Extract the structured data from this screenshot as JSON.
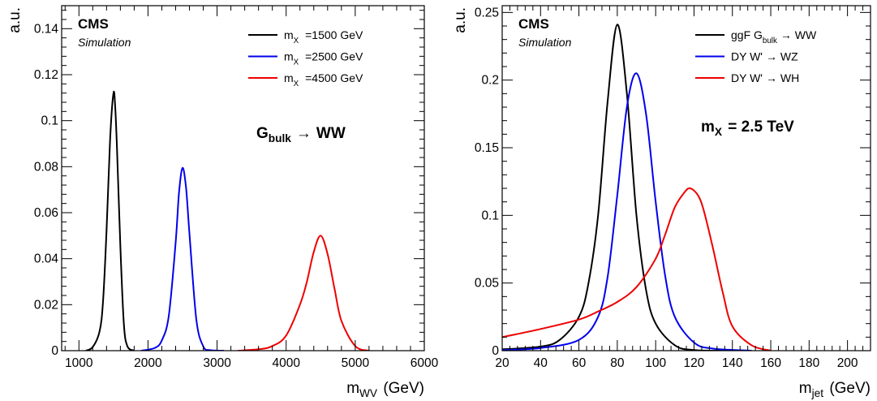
{
  "chart_data": [
    {
      "type": "line",
      "experiment_label": "CMS",
      "subtitle": "Simulation",
      "annotation": {
        "main": "G",
        "sub": "bulk",
        "arrow": "→",
        "rest": "WW"
      },
      "xlabel": {
        "main": "m",
        "sub": "WV",
        "unit": " (GeV)"
      },
      "ylabel": "a.u.",
      "xlim": [
        750,
        6000
      ],
      "ylim": [
        0,
        0.15
      ],
      "xticks": [
        1000,
        2000,
        3000,
        4000,
        5000,
        6000
      ],
      "xtick_labels": [
        "1000",
        "2000",
        "3000",
        "4000",
        "5000",
        "6000"
      ],
      "yticks": [
        0,
        0.02,
        0.04,
        0.06,
        0.08,
        0.1,
        0.12,
        0.14
      ],
      "ytick_labels": [
        "0",
        "0.02",
        "0.04",
        "0.06",
        "0.08",
        "0.1",
        "0.12",
        "0.14"
      ],
      "grid": false,
      "legend_position": "top-right",
      "series": [
        {
          "legend": {
            "main": "m",
            "sub": "X",
            "rest": " =1500 GeV"
          },
          "color": "#000000",
          "x": [
            1100,
            1200,
            1300,
            1350,
            1400,
            1450,
            1500,
            1525,
            1550,
            1600,
            1650,
            1700,
            1800
          ],
          "y": [
            0.0,
            0.0016,
            0.0085,
            0.022,
            0.052,
            0.091,
            0.112,
            0.106,
            0.089,
            0.045,
            0.012,
            0.002,
            0.0
          ]
        },
        {
          "legend": {
            "main": "m",
            "sub": "X",
            "rest": " =2500 GeV"
          },
          "color": "#0000ee",
          "x": [
            1900,
            2100,
            2200,
            2300,
            2400,
            2450,
            2500,
            2550,
            2600,
            2700,
            2800,
            2900,
            3100
          ],
          "y": [
            0.0,
            0.0012,
            0.0045,
            0.015,
            0.047,
            0.069,
            0.0795,
            0.071,
            0.051,
            0.0135,
            0.0019,
            0.0002,
            0.0
          ]
        },
        {
          "legend": {
            "main": "m",
            "sub": "X",
            "rest": " =4500 GeV"
          },
          "color": "#ee0000",
          "x": [
            3300,
            3600,
            3800,
            4000,
            4200,
            4300,
            4400,
            4500,
            4600,
            4700,
            4800,
            5000,
            5200
          ],
          "y": [
            0.0,
            0.0006,
            0.002,
            0.0066,
            0.02,
            0.03,
            0.043,
            0.05,
            0.042,
            0.027,
            0.013,
            0.002,
            0.0
          ]
        }
      ]
    },
    {
      "type": "line",
      "experiment_label": "CMS",
      "subtitle": "Simulation",
      "annotation": {
        "main": "m",
        "sub": "X",
        "rest": " = 2.5 TeV"
      },
      "xlabel": {
        "main": "m",
        "sub": "jet",
        "unit": " (GeV)"
      },
      "ylabel": "a.u.",
      "xlim": [
        20,
        212
      ],
      "ylim": [
        0,
        0.255
      ],
      "xticks": [
        20,
        40,
        60,
        80,
        100,
        120,
        140,
        160,
        180,
        200
      ],
      "xtick_labels": [
        "20",
        "40",
        "60",
        "80",
        "100",
        "120",
        "140",
        "160",
        "180",
        "200"
      ],
      "yticks": [
        0,
        0.05,
        0.1,
        0.15,
        0.2,
        0.25
      ],
      "ytick_labels": [
        "0",
        "0.05",
        "0.1",
        "0.15",
        "0.2",
        "0.25"
      ],
      "grid": false,
      "legend_position": "top-right",
      "series": [
        {
          "legend": {
            "main": "ggF G",
            "sub": "bulk",
            "rest": "→ WW"
          },
          "color": "#000000",
          "x": [
            20,
            40,
            50,
            60,
            65,
            70,
            75,
            80,
            85,
            90,
            95,
            100,
            110,
            120,
            140
          ],
          "y": [
            0.001,
            0.003,
            0.008,
            0.025,
            0.05,
            0.1,
            0.185,
            0.241,
            0.19,
            0.1,
            0.045,
            0.02,
            0.004,
            0.0005,
            0.0
          ]
        },
        {
          "legend": {
            "main": "DY W'",
            "sub": "",
            "rest": "→ WZ"
          },
          "color": "#0000ee",
          "x": [
            20,
            40,
            60,
            70,
            75,
            80,
            85,
            90,
            95,
            100,
            105,
            110,
            120,
            130,
            150
          ],
          "y": [
            0.0005,
            0.002,
            0.008,
            0.025,
            0.055,
            0.115,
            0.18,
            0.205,
            0.175,
            0.11,
            0.055,
            0.025,
            0.006,
            0.0015,
            0.0
          ]
        },
        {
          "legend": {
            "main": "DY W'",
            "sub": "",
            "rest": "→ WH"
          },
          "color": "#ee0000",
          "x": [
            20,
            40,
            60,
            70,
            80,
            90,
            100,
            105,
            110,
            115,
            118,
            122,
            125,
            130,
            135,
            140,
            150,
            160
          ],
          "y": [
            0.01,
            0.016,
            0.023,
            0.029,
            0.036,
            0.047,
            0.068,
            0.086,
            0.106,
            0.117,
            0.12,
            0.115,
            0.104,
            0.075,
            0.043,
            0.018,
            0.004,
            0.0
          ]
        }
      ]
    }
  ]
}
